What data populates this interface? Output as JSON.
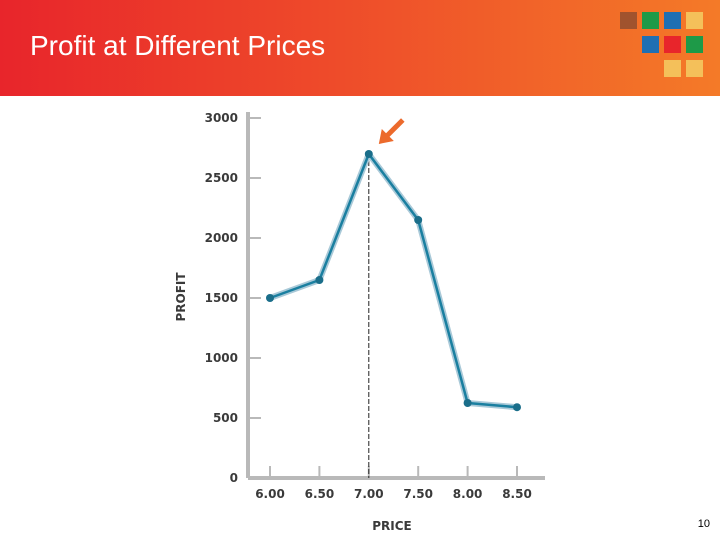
{
  "slide": {
    "title": "Profit at Different Prices",
    "page_number": "10"
  },
  "header_squares": {
    "colors": [
      "#a0532e",
      "#1e9a48",
      "#1f6fb3",
      "#f4c05a",
      "#1f6fb3",
      "#e8252b",
      "#1e9a48",
      "#f4c05a",
      "#f4c05a"
    ]
  },
  "chart_data": {
    "type": "line",
    "title": "",
    "xlabel": "PRICE",
    "ylabel": "PROFIT",
    "categories": [
      "6.00",
      "6.50",
      "7.00",
      "7.50",
      "8.00",
      "8.50"
    ],
    "x": [
      6.0,
      6.5,
      7.0,
      7.5,
      8.0,
      8.5
    ],
    "y": [
      1500,
      1650,
      2700,
      2150,
      625,
      590
    ],
    "yticks": [
      "0",
      "500",
      "1000",
      "1500",
      "2000",
      "2500",
      "3000"
    ],
    "ylim": [
      0,
      3000
    ],
    "grid": false,
    "line_color": "#1a7fa0",
    "marker_color": "#1a6e8a",
    "highlight": {
      "category": "7.00",
      "arrow_color": "#ec6a2c"
    }
  }
}
